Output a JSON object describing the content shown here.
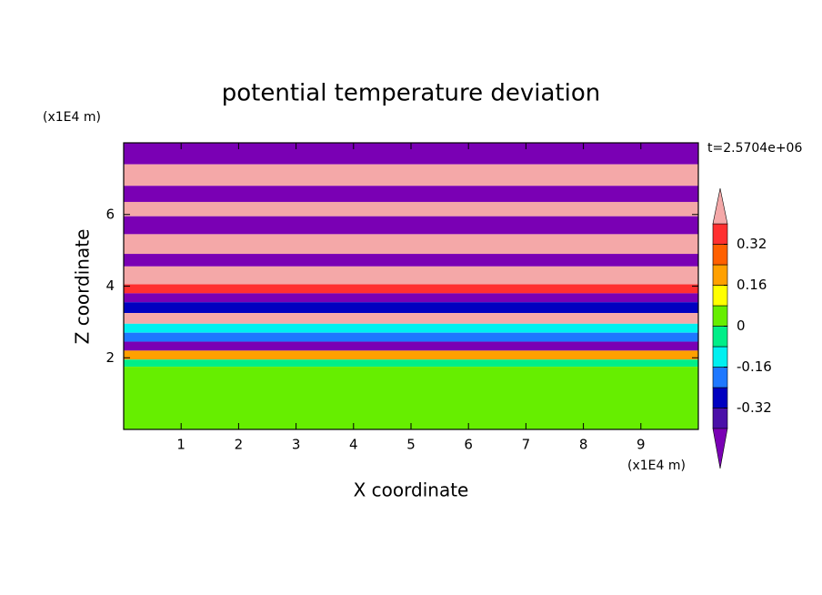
{
  "chart_data": {
    "type": "contour",
    "title": "potential temperature deviation",
    "xlabel": "X coordinate",
    "ylabel": "Z coordinate",
    "x_unit": "(x1E4 m)",
    "y_unit": "(x1E4 m)",
    "annotation": "t=2.5704e+06",
    "xlim": [
      0,
      10
    ],
    "xticks": [
      1,
      2,
      3,
      4,
      5,
      6,
      7,
      8,
      9
    ],
    "ylim": [
      0,
      8
    ],
    "yticks": [
      2,
      4,
      6
    ],
    "field": {
      "z_edges": [
        8,
        7.4,
        6.8,
        6.35,
        5.95,
        5.45,
        4.9,
        4.55,
        4.05,
        3.8,
        3.55,
        3.25,
        2.95,
        2.7,
        2.45,
        2.2,
        1.95,
        1.75,
        0
      ],
      "values": [
        -0.5,
        0.5,
        -0.5,
        0.5,
        -0.5,
        0.5,
        -0.5,
        0.5,
        0.36,
        -0.5,
        -0.28,
        0.5,
        -0.12,
        -0.2,
        -0.5,
        0.2,
        -0.04,
        0.04
      ]
    },
    "colorbar": {
      "levels": [
        -0.4,
        -0.32,
        -0.24,
        -0.16,
        -0.08,
        0,
        0.08,
        0.16,
        0.24,
        0.32,
        0.4
      ],
      "colors": [
        "#7a00b4",
        "#4a10a8",
        "#0000c0",
        "#1e78ff",
        "#00f0f0",
        "#00ee88",
        "#66ee00",
        "#ffff00",
        "#ffa000",
        "#ff6000",
        "#ff3030",
        "#f4a8a8"
      ],
      "ticks": [
        -0.32,
        -0.16,
        0,
        0.16,
        0.32
      ]
    }
  }
}
